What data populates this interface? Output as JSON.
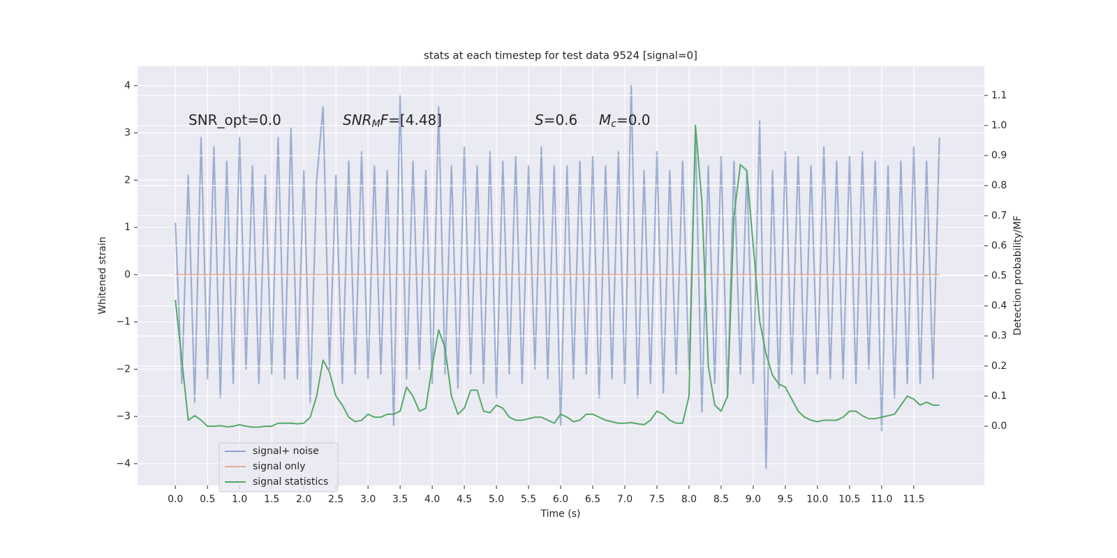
{
  "chart_data": {
    "type": "line",
    "title": "stats at each timestep for test data 9524 [signal=0]",
    "xlabel": "Time (s)",
    "ylabel": "Whitened strain",
    "y2label": "Detection probability/MF",
    "x": [
      0.0,
      0.1,
      0.2,
      0.3,
      0.4,
      0.5,
      0.6,
      0.7,
      0.8,
      0.9,
      1.0,
      1.1,
      1.2,
      1.3,
      1.4,
      1.5,
      1.6,
      1.7,
      1.8,
      1.9,
      2.0,
      2.1,
      2.2,
      2.3,
      2.4,
      2.5,
      2.6,
      2.7,
      2.8,
      2.9,
      3.0,
      3.1,
      3.2,
      3.3,
      3.4,
      3.5,
      3.6,
      3.7,
      3.8,
      3.9,
      4.0,
      4.1,
      4.2,
      4.3,
      4.4,
      4.5,
      4.6,
      4.7,
      4.8,
      4.9,
      5.0,
      5.1,
      5.2,
      5.3,
      5.4,
      5.5,
      5.6,
      5.7,
      5.8,
      5.9,
      6.0,
      6.1,
      6.2,
      6.3,
      6.4,
      6.5,
      6.6,
      6.7,
      6.8,
      6.9,
      7.0,
      7.1,
      7.2,
      7.3,
      7.4,
      7.5,
      7.6,
      7.7,
      7.8,
      7.9,
      8.0,
      8.1,
      8.2,
      8.3,
      8.4,
      8.5,
      8.6,
      8.7,
      8.8,
      8.9,
      9.0,
      9.1,
      9.2,
      9.3,
      9.4,
      9.5,
      9.6,
      9.7,
      9.8,
      9.9,
      10.0,
      10.1,
      10.2,
      10.3,
      10.4,
      10.5,
      10.6,
      10.7,
      10.8,
      10.9,
      11.0,
      11.1,
      11.2,
      11.3,
      11.4,
      11.5,
      11.6,
      11.7,
      11.8,
      11.9
    ],
    "series": [
      {
        "name": "signal+ noise",
        "color": "#4c72b0",
        "values": [
          1.1,
          -2.3,
          2.1,
          -2.7,
          2.9,
          -2.2,
          2.7,
          -2.6,
          2.4,
          -2.3,
          2.9,
          -2.0,
          2.3,
          -2.3,
          2.1,
          -2.1,
          2.9,
          -2.2,
          3.1,
          -2.2,
          2.2,
          -2.7,
          2.0,
          3.55,
          -2.0,
          2.1,
          -2.3,
          2.4,
          -2.1,
          2.6,
          -2.2,
          2.3,
          -2.1,
          2.2,
          -3.2,
          3.8,
          -2.2,
          2.4,
          -2.0,
          2.2,
          -2.3,
          3.55,
          -2.1,
          2.3,
          -2.4,
          2.7,
          -2.1,
          2.3,
          -2.3,
          2.6,
          -2.6,
          2.4,
          -2.1,
          2.5,
          -2.3,
          2.3,
          -2.0,
          2.7,
          -2.2,
          2.3,
          -3.2,
          2.3,
          -2.2,
          2.4,
          -2.1,
          2.5,
          -2.6,
          2.3,
          -2.2,
          2.6,
          -2.3,
          4.0,
          -2.6,
          2.2,
          -2.3,
          2.6,
          -2.5,
          2.2,
          -2.1,
          2.4,
          -2.0,
          3.0,
          -2.9,
          2.3,
          -2.3,
          2.5,
          -2.6,
          2.4,
          -2.1,
          2.2,
          -2.3,
          3.25,
          -4.1,
          2.2,
          -2.4,
          2.6,
          -2.1,
          2.5,
          -2.3,
          2.3,
          -2.1,
          2.7,
          -2.2,
          2.4,
          -2.2,
          2.5,
          -2.3,
          2.6,
          -2.0,
          2.4,
          -3.3,
          2.3,
          -2.6,
          2.4,
          -2.3,
          2.7,
          -2.3,
          2.4,
          -2.2,
          2.9
        ]
      },
      {
        "name": "signal only",
        "color": "#dd8452",
        "values": [
          0,
          0,
          0,
          0,
          0,
          0,
          0,
          0,
          0,
          0,
          0,
          0,
          0,
          0,
          0,
          0,
          0,
          0,
          0,
          0,
          0,
          0,
          0,
          0,
          0,
          0,
          0,
          0,
          0,
          0,
          0,
          0,
          0,
          0,
          0,
          0,
          0,
          0,
          0,
          0,
          0,
          0,
          0,
          0,
          0,
          0,
          0,
          0,
          0,
          0,
          0,
          0,
          0,
          0,
          0,
          0,
          0,
          0,
          0,
          0,
          0,
          0,
          0,
          0,
          0,
          0,
          0,
          0,
          0,
          0,
          0,
          0,
          0,
          0,
          0,
          0,
          0,
          0,
          0,
          0,
          0,
          0,
          0,
          0,
          0,
          0,
          0,
          0,
          0,
          0,
          0,
          0,
          0,
          0,
          0,
          0,
          0,
          0,
          0,
          0,
          0,
          0,
          0,
          0,
          0,
          0,
          0,
          0,
          0,
          0,
          0,
          0,
          0,
          0,
          0,
          0,
          0,
          0,
          0,
          0
        ]
      },
      {
        "name": "signal statistics",
        "color": "#55a868",
        "axis": "y2",
        "values": [
          0.42,
          0.22,
          0.02,
          0.035,
          0.02,
          0.0,
          0.0,
          0.002,
          -0.002,
          0.0,
          0.005,
          0.0,
          -0.003,
          -0.003,
          0.0,
          0.0,
          0.01,
          0.01,
          0.01,
          0.008,
          0.01,
          0.03,
          0.1,
          0.22,
          0.18,
          0.1,
          0.07,
          0.03,
          0.015,
          0.02,
          0.04,
          0.03,
          0.03,
          0.04,
          0.04,
          0.05,
          0.13,
          0.1,
          0.05,
          0.06,
          0.2,
          0.32,
          0.26,
          0.1,
          0.04,
          0.06,
          0.12,
          0.12,
          0.05,
          0.045,
          0.07,
          0.06,
          0.03,
          0.02,
          0.02,
          0.025,
          0.03,
          0.03,
          0.02,
          0.01,
          0.04,
          0.03,
          0.015,
          0.02,
          0.04,
          0.04,
          0.03,
          0.02,
          0.015,
          0.01,
          0.01,
          0.012,
          0.008,
          0.005,
          0.02,
          0.05,
          0.04,
          0.02,
          0.01,
          0.01,
          0.1,
          1.0,
          0.75,
          0.2,
          0.07,
          0.05,
          0.1,
          0.7,
          0.87,
          0.85,
          0.6,
          0.35,
          0.24,
          0.17,
          0.14,
          0.13,
          0.09,
          0.05,
          0.03,
          0.02,
          0.015,
          0.02,
          0.02,
          0.02,
          0.03,
          0.05,
          0.05,
          0.035,
          0.025,
          0.025,
          0.03,
          0.035,
          0.04,
          0.07,
          0.1,
          0.09,
          0.07,
          0.08,
          0.07,
          0.07
        ]
      }
    ],
    "xlim": [
      -0.59,
      12.6
    ],
    "ylim": [
      -4.46,
      4.41
    ],
    "y2lim": [
      -0.197,
      1.197
    ],
    "xticks": [
      {
        "value": 0,
        "label": "0.0"
      },
      0.5,
      {
        "value": 1,
        "label": "1.0"
      },
      1.5,
      {
        "value": 2,
        "label": "2.0"
      },
      2.5,
      {
        "value": 3,
        "label": "3.0"
      },
      3.5,
      {
        "value": 4,
        "label": "4.0"
      },
      4.5,
      {
        "value": 5,
        "label": "5.0"
      },
      5.5,
      {
        "value": 6,
        "label": "6.0"
      },
      6.5,
      {
        "value": 7,
        "label": "7.0"
      },
      7.5,
      {
        "value": 8,
        "label": "8.0"
      },
      8.5,
      {
        "value": 9,
        "label": "9.0"
      },
      9.5,
      {
        "value": 10,
        "label": "10.0"
      },
      10.5,
      {
        "value": 11,
        "label": "11.0"
      },
      11.5
    ],
    "yticks": [
      {
        "value": -4,
        "label": "−4"
      },
      {
        "value": -3,
        "label": "−3"
      },
      {
        "value": -2,
        "label": "−2"
      },
      {
        "value": -1,
        "label": "−1"
      },
      0,
      1,
      2,
      3,
      4
    ],
    "y2ticks": [
      {
        "value": 0,
        "label": "0.0"
      },
      0.1,
      0.2,
      0.3,
      0.4,
      0.5,
      0.6,
      0.7,
      0.8,
      0.9,
      {
        "value": 1,
        "label": "1.0"
      },
      1.1
    ],
    "grid": true,
    "legend": "lower left",
    "annotations": [
      {
        "parts": [
          {
            "text": "SNR_opt=0.0",
            "style": "normal"
          }
        ]
      },
      {
        "parts": [
          {
            "text": "SNR",
            "style": "italic"
          },
          {
            "text": "M",
            "style": "sub"
          },
          {
            "text": "F",
            "style": "italic"
          },
          {
            "text": "=[4.48]",
            "style": "normal"
          }
        ]
      },
      {
        "parts": [
          {
            "text": "S",
            "style": "italic"
          },
          {
            "text": "=0.6",
            "style": "normal"
          }
        ]
      },
      {
        "parts": [
          {
            "text": "M",
            "style": "italic"
          },
          {
            "text": "c",
            "style": "sub"
          },
          {
            "text": "=0.0",
            "style": "normal"
          }
        ]
      }
    ]
  }
}
